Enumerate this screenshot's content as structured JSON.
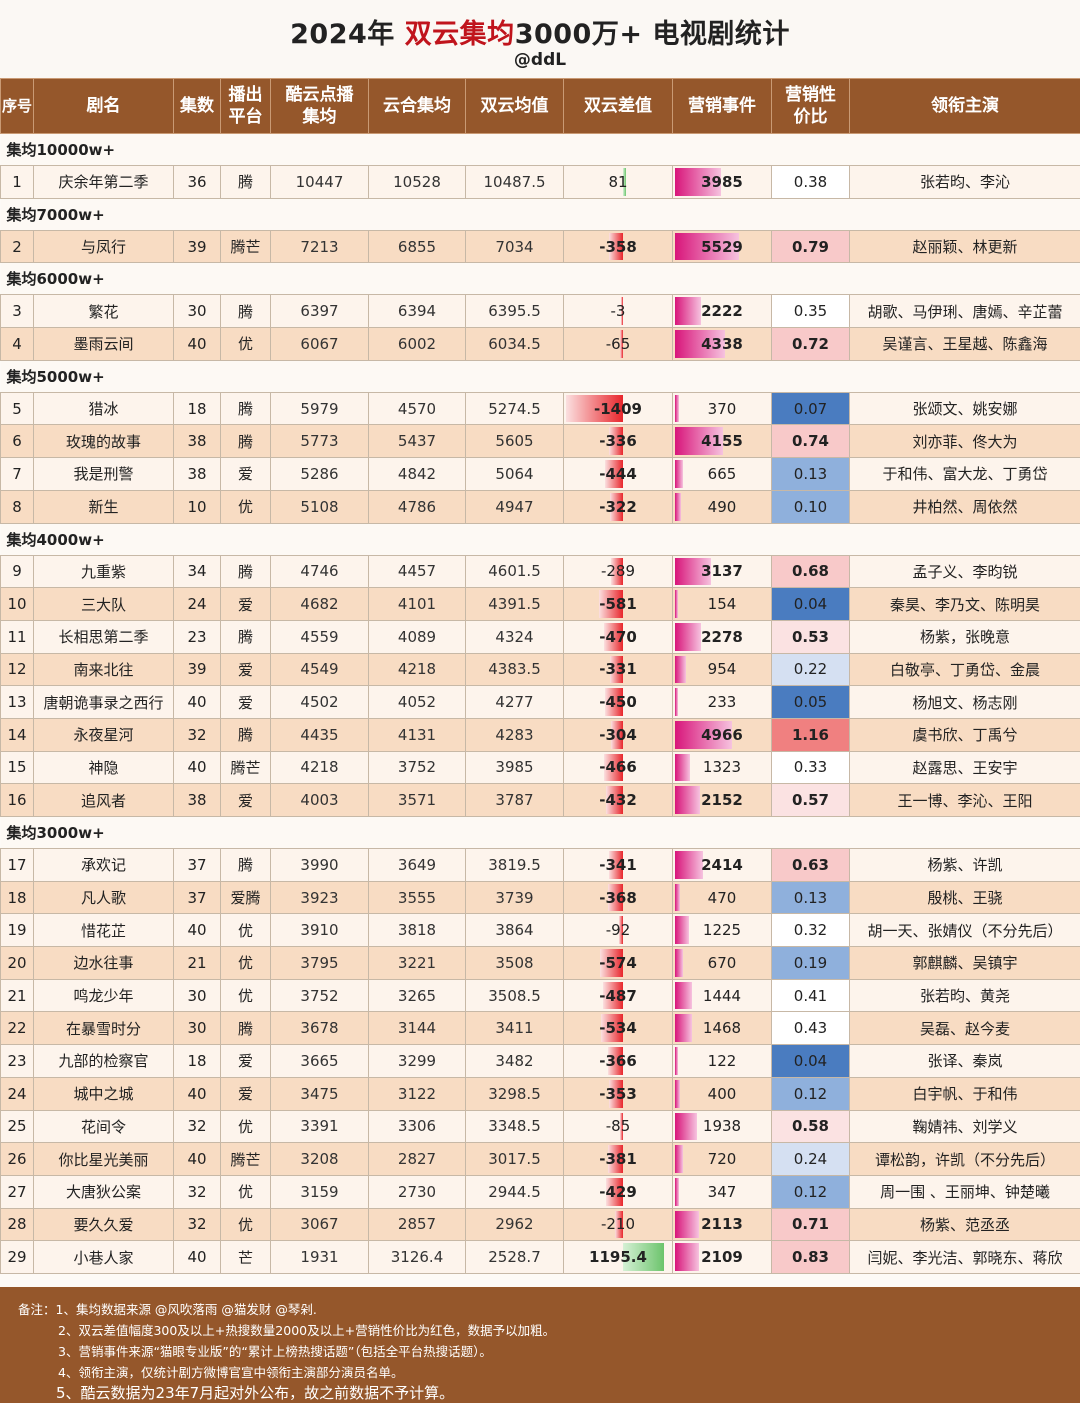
{
  "header": {
    "title_pre": "2024年 ",
    "title_hl": "双云集均",
    "title_post": "3000万+ 电视剧统计",
    "handle": "@ddL"
  },
  "columns": [
    "序号",
    "剧名",
    "集数",
    "播出平台",
    "酷云点播集均",
    "云合集均",
    "双云均值",
    "双云差值",
    "营销事件",
    "营销性价比",
    "领衔主演"
  ],
  "colors": {
    "header_bg": "#95572b",
    "accent_red": "#c0141c",
    "diff_bar": "#e8262c",
    "marketing_bar": "#d8157a",
    "ratio_high": "#f08080",
    "ratio_low": "#4a7cc0"
  },
  "groups": [
    {
      "label": "集均10000w+",
      "rows": [
        {
          "no": "1",
          "name": "庆余年第二季",
          "eps": "36",
          "platform": "腾",
          "kuyun": "10447",
          "yunhe": "10528",
          "avg": "10487.5",
          "diff": "81",
          "mkt": "3985",
          "ratio": "0.38",
          "cast": "张若昀、李沁"
        }
      ]
    },
    {
      "label": "集均7000w+",
      "rows": [
        {
          "no": "2",
          "name": "与凤行",
          "eps": "39",
          "platform": "腾芒",
          "kuyun": "7213",
          "yunhe": "6855",
          "avg": "7034",
          "diff": "-358",
          "mkt": "5529",
          "ratio": "0.79",
          "cast": "赵丽颖、林更新"
        }
      ]
    },
    {
      "label": "集均6000w+",
      "rows": [
        {
          "no": "3",
          "name": "繁花",
          "eps": "30",
          "platform": "腾",
          "kuyun": "6397",
          "yunhe": "6394",
          "avg": "6395.5",
          "diff": "-3",
          "mkt": "2222",
          "ratio": "0.35",
          "cast": "胡歌、马伊琍、唐嫣、辛芷蕾"
        },
        {
          "no": "4",
          "name": "墨雨云间",
          "eps": "40",
          "platform": "优",
          "kuyun": "6067",
          "yunhe": "6002",
          "avg": "6034.5",
          "diff": "-65",
          "mkt": "4338",
          "ratio": "0.72",
          "cast": "吴谨言、王星越、陈鑫海"
        }
      ]
    },
    {
      "label": "集均5000w+",
      "rows": [
        {
          "no": "5",
          "name": "猎冰",
          "eps": "18",
          "platform": "腾",
          "kuyun": "5979",
          "yunhe": "4570",
          "avg": "5274.5",
          "diff": "-1409",
          "mkt": "370",
          "ratio": "0.07",
          "cast": "张颂文、姚安娜"
        },
        {
          "no": "6",
          "name": "玫瑰的故事",
          "eps": "38",
          "platform": "腾",
          "kuyun": "5773",
          "yunhe": "5437",
          "avg": "5605",
          "diff": "-336",
          "mkt": "4155",
          "ratio": "0.74",
          "cast": "刘亦菲、佟大为"
        },
        {
          "no": "7",
          "name": "我是刑警",
          "eps": "38",
          "platform": "爱",
          "kuyun": "5286",
          "yunhe": "4842",
          "avg": "5064",
          "diff": "-444",
          "mkt": "665",
          "ratio": "0.13",
          "cast": "于和伟、富大龙、丁勇岱"
        },
        {
          "no": "8",
          "name": "新生",
          "eps": "10",
          "platform": "优",
          "kuyun": "5108",
          "yunhe": "4786",
          "avg": "4947",
          "diff": "-322",
          "mkt": "490",
          "ratio": "0.10",
          "cast": "井柏然、周依然"
        }
      ]
    },
    {
      "label": "集均4000w+",
      "rows": [
        {
          "no": "9",
          "name": "九重紫",
          "eps": "34",
          "platform": "腾",
          "kuyun": "4746",
          "yunhe": "4457",
          "avg": "4601.5",
          "diff": "-289",
          "mkt": "3137",
          "ratio": "0.68",
          "cast": "孟子义、李昀锐"
        },
        {
          "no": "10",
          "name": "三大队",
          "eps": "24",
          "platform": "爱",
          "kuyun": "4682",
          "yunhe": "4101",
          "avg": "4391.5",
          "diff": "-581",
          "mkt": "154",
          "ratio": "0.04",
          "cast": "秦昊、李乃文、陈明昊"
        },
        {
          "no": "11",
          "name": "长相思第二季",
          "eps": "23",
          "platform": "腾",
          "kuyun": "4559",
          "yunhe": "4089",
          "avg": "4324",
          "diff": "-470",
          "mkt": "2278",
          "ratio": "0.53",
          "cast": "杨紫，张晚意"
        },
        {
          "no": "12",
          "name": "南来北往",
          "eps": "39",
          "platform": "爱",
          "kuyun": "4549",
          "yunhe": "4218",
          "avg": "4383.5",
          "diff": "-331",
          "mkt": "954",
          "ratio": "0.22",
          "cast": "白敬亭、丁勇岱、金晨"
        },
        {
          "no": "13",
          "name": "唐朝诡事录之西行",
          "eps": "40",
          "platform": "爱",
          "kuyun": "4502",
          "yunhe": "4052",
          "avg": "4277",
          "diff": "-450",
          "mkt": "233",
          "ratio": "0.05",
          "cast": "杨旭文、杨志刚"
        },
        {
          "no": "14",
          "name": "永夜星河",
          "eps": "32",
          "platform": "腾",
          "kuyun": "4435",
          "yunhe": "4131",
          "avg": "4283",
          "diff": "-304",
          "mkt": "4966",
          "ratio": "1.16",
          "cast": "虞书欣、丁禹兮"
        },
        {
          "no": "15",
          "name": "神隐",
          "eps": "40",
          "platform": "腾芒",
          "kuyun": "4218",
          "yunhe": "3752",
          "avg": "3985",
          "diff": "-466",
          "mkt": "1323",
          "ratio": "0.33",
          "cast": "赵露思、王安宇"
        },
        {
          "no": "16",
          "name": "追风者",
          "eps": "38",
          "platform": "爱",
          "kuyun": "4003",
          "yunhe": "3571",
          "avg": "3787",
          "diff": "-432",
          "mkt": "2152",
          "ratio": "0.57",
          "cast": "王一博、李沁、王阳"
        }
      ]
    },
    {
      "label": "集均3000w+",
      "rows": [
        {
          "no": "17",
          "name": "承欢记",
          "eps": "37",
          "platform": "腾",
          "kuyun": "3990",
          "yunhe": "3649",
          "avg": "3819.5",
          "diff": "-341",
          "mkt": "2414",
          "ratio": "0.63",
          "cast": "杨紫、许凯"
        },
        {
          "no": "18",
          "name": "凡人歌",
          "eps": "37",
          "platform": "爱腾",
          "kuyun": "3923",
          "yunhe": "3555",
          "avg": "3739",
          "diff": "-368",
          "mkt": "470",
          "ratio": "0.13",
          "cast": "殷桃、王骁"
        },
        {
          "no": "19",
          "name": "惜花芷",
          "eps": "40",
          "platform": "优",
          "kuyun": "3910",
          "yunhe": "3818",
          "avg": "3864",
          "diff": "-92",
          "mkt": "1225",
          "ratio": "0.32",
          "cast": "胡一天、张婧仪（不分先后）"
        },
        {
          "no": "20",
          "name": "边水往事",
          "eps": "21",
          "platform": "优",
          "kuyun": "3795",
          "yunhe": "3221",
          "avg": "3508",
          "diff": "-574",
          "mkt": "670",
          "ratio": "0.19",
          "cast": "郭麒麟、吴镇宇"
        },
        {
          "no": "21",
          "name": "鸣龙少年",
          "eps": "30",
          "platform": "优",
          "kuyun": "3752",
          "yunhe": "3265",
          "avg": "3508.5",
          "diff": "-487",
          "mkt": "1444",
          "ratio": "0.41",
          "cast": "张若昀、黄尧"
        },
        {
          "no": "22",
          "name": "在暴雪时分",
          "eps": "30",
          "platform": "腾",
          "kuyun": "3678",
          "yunhe": "3144",
          "avg": "3411",
          "diff": "-534",
          "mkt": "1468",
          "ratio": "0.43",
          "cast": "吴磊、赵今麦"
        },
        {
          "no": "23",
          "name": "九部的检察官",
          "eps": "18",
          "platform": "爱",
          "kuyun": "3665",
          "yunhe": "3299",
          "avg": "3482",
          "diff": "-366",
          "mkt": "122",
          "ratio": "0.04",
          "cast": "张译、秦岚"
        },
        {
          "no": "24",
          "name": "城中之城",
          "eps": "40",
          "platform": "爱",
          "kuyun": "3475",
          "yunhe": "3122",
          "avg": "3298.5",
          "diff": "-353",
          "mkt": "400",
          "ratio": "0.12",
          "cast": "白宇帆、于和伟"
        },
        {
          "no": "25",
          "name": "花间令",
          "eps": "32",
          "platform": "优",
          "kuyun": "3391",
          "yunhe": "3306",
          "avg": "3348.5",
          "diff": "-85",
          "mkt": "1938",
          "ratio": "0.58",
          "cast": "鞠婧祎、刘学义"
        },
        {
          "no": "26",
          "name": "你比星光美丽",
          "eps": "40",
          "platform": "腾芒",
          "kuyun": "3208",
          "yunhe": "2827",
          "avg": "3017.5",
          "diff": "-381",
          "mkt": "720",
          "ratio": "0.24",
          "cast": "谭松韵，许凯（不分先后）"
        },
        {
          "no": "27",
          "name": "大唐狄公案",
          "eps": "32",
          "platform": "优",
          "kuyun": "3159",
          "yunhe": "2730",
          "avg": "2944.5",
          "diff": "-429",
          "mkt": "347",
          "ratio": "0.12",
          "cast": "周一围 、王丽坤、钟楚曦"
        },
        {
          "no": "28",
          "name": "要久久爱",
          "eps": "32",
          "platform": "优",
          "kuyun": "3067",
          "yunhe": "2857",
          "avg": "2962",
          "diff": "-210",
          "mkt": "2113",
          "ratio": "0.71",
          "cast": "杨紫、范丞丞"
        },
        {
          "no": "29",
          "name": "小巷人家",
          "eps": "40",
          "platform": "芒",
          "kuyun": "1931",
          "yunhe": "3126.4",
          "avg": "2528.7",
          "diff": "1195.4",
          "mkt": "2109",
          "ratio": "0.83",
          "cast": "闫妮、李光洁、郭晓东、蒋欣"
        }
      ]
    }
  ],
  "notes": [
    "备注：1、集均数据来源 @风吹落雨 @猫发财 @琴剁.",
    "2、双云差值幅度300及以上+热搜数量2000及以上+营销性价比为红色，数据予以加粗。",
    "3、营销事件来源“猫眼专业版”的“累计上榜热搜话题”（包括全平台热搜话题）。",
    "4、领衔主演，仅统计剧方微博官宣中领衔主演部分演员名单。",
    "5、酷云数据为23年7月起对外公布，故之前数据不予计算。"
  ]
}
